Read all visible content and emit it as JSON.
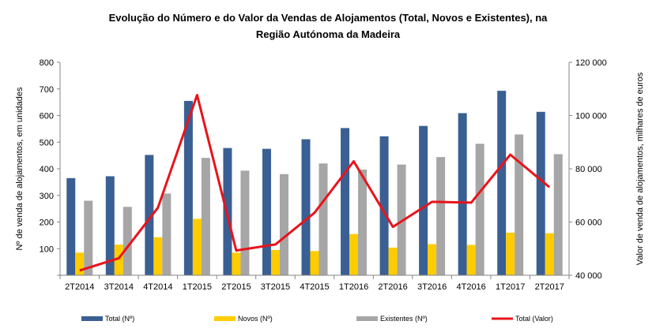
{
  "chart_data": {
    "type": "bar",
    "title_line1": "Evolução do Número e do Valor da Vendas de Alojamentos (Total, Novos e Existentes), na",
    "title_line2": "Região Autónoma da Madeira",
    "ylabel_left": "Nº de venda de alojamentos, em unidades",
    "ylabel_right": "Valor de venda de alojamentos, milhares de euros",
    "categories": [
      "2T2014",
      "3T2014",
      "4T2014",
      "1T2015",
      "2T2015",
      "3T2015",
      "4T2015",
      "1T2016",
      "2T2016",
      "3T2016",
      "4T2016",
      "1T2017",
      "2T2017"
    ],
    "ylim_left": [
      0,
      800
    ],
    "yticks_left": [
      "",
      "100",
      "200",
      "300",
      "400",
      "500",
      "600",
      "700",
      "800"
    ],
    "ylim_right": [
      40000,
      120000
    ],
    "yticks_right": [
      "40 000",
      "60 000",
      "80 000",
      "100 000",
      "120 000"
    ],
    "series": [
      {
        "name": "Total (Nº)",
        "type": "bar",
        "axis": "left",
        "color": "#3A5F93",
        "values": [
          365,
          372,
          452,
          655,
          478,
          475,
          511,
          553,
          522,
          561,
          609,
          693,
          614
        ]
      },
      {
        "name": "Novos (Nº)",
        "type": "bar",
        "axis": "left",
        "color": "#FFCC00",
        "values": [
          85,
          115,
          143,
          212,
          85,
          95,
          91,
          155,
          104,
          117,
          114,
          160,
          158
        ]
      },
      {
        "name": "Existentes (Nº)",
        "type": "bar",
        "axis": "left",
        "color": "#A6A6A6",
        "values": [
          280,
          257,
          307,
          441,
          393,
          380,
          420,
          397,
          416,
          444,
          494,
          529,
          455
        ]
      },
      {
        "name": "Total (Valor)",
        "type": "line",
        "axis": "right",
        "color": "#E8141B",
        "values": [
          41800,
          46400,
          65400,
          107700,
          49300,
          51600,
          63500,
          82800,
          58200,
          67600,
          67300,
          85300,
          73100
        ]
      }
    ],
    "legend_position": "bottom",
    "grid": false
  }
}
